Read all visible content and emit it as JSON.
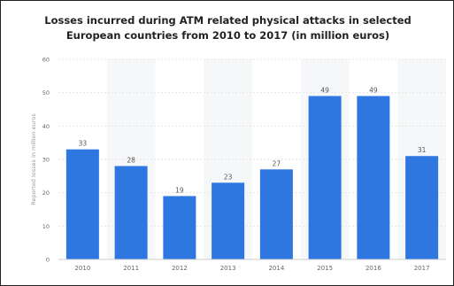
{
  "chart_data": {
    "type": "bar",
    "title_lines": [
      "Losses incurred during ATM related physical attacks in selected",
      "European countries from 2010 to 2017 (in million euros)"
    ],
    "ylabel": "Reported losses in million euros",
    "categories": [
      "2010",
      "2011",
      "2012",
      "2013",
      "2014",
      "2015",
      "2016",
      "2017"
    ],
    "values": [
      33,
      28,
      19,
      23,
      27,
      49,
      49,
      31
    ],
    "data_labels": [
      "33",
      "28",
      "19",
      "23",
      "27",
      "49",
      "49",
      "31"
    ],
    "ylim": [
      0,
      60
    ],
    "yticks": [
      0,
      10,
      20,
      30,
      40,
      50,
      60
    ],
    "grid": true,
    "bar_color": "#2f77e0",
    "band_color": "#f6f7f9"
  }
}
